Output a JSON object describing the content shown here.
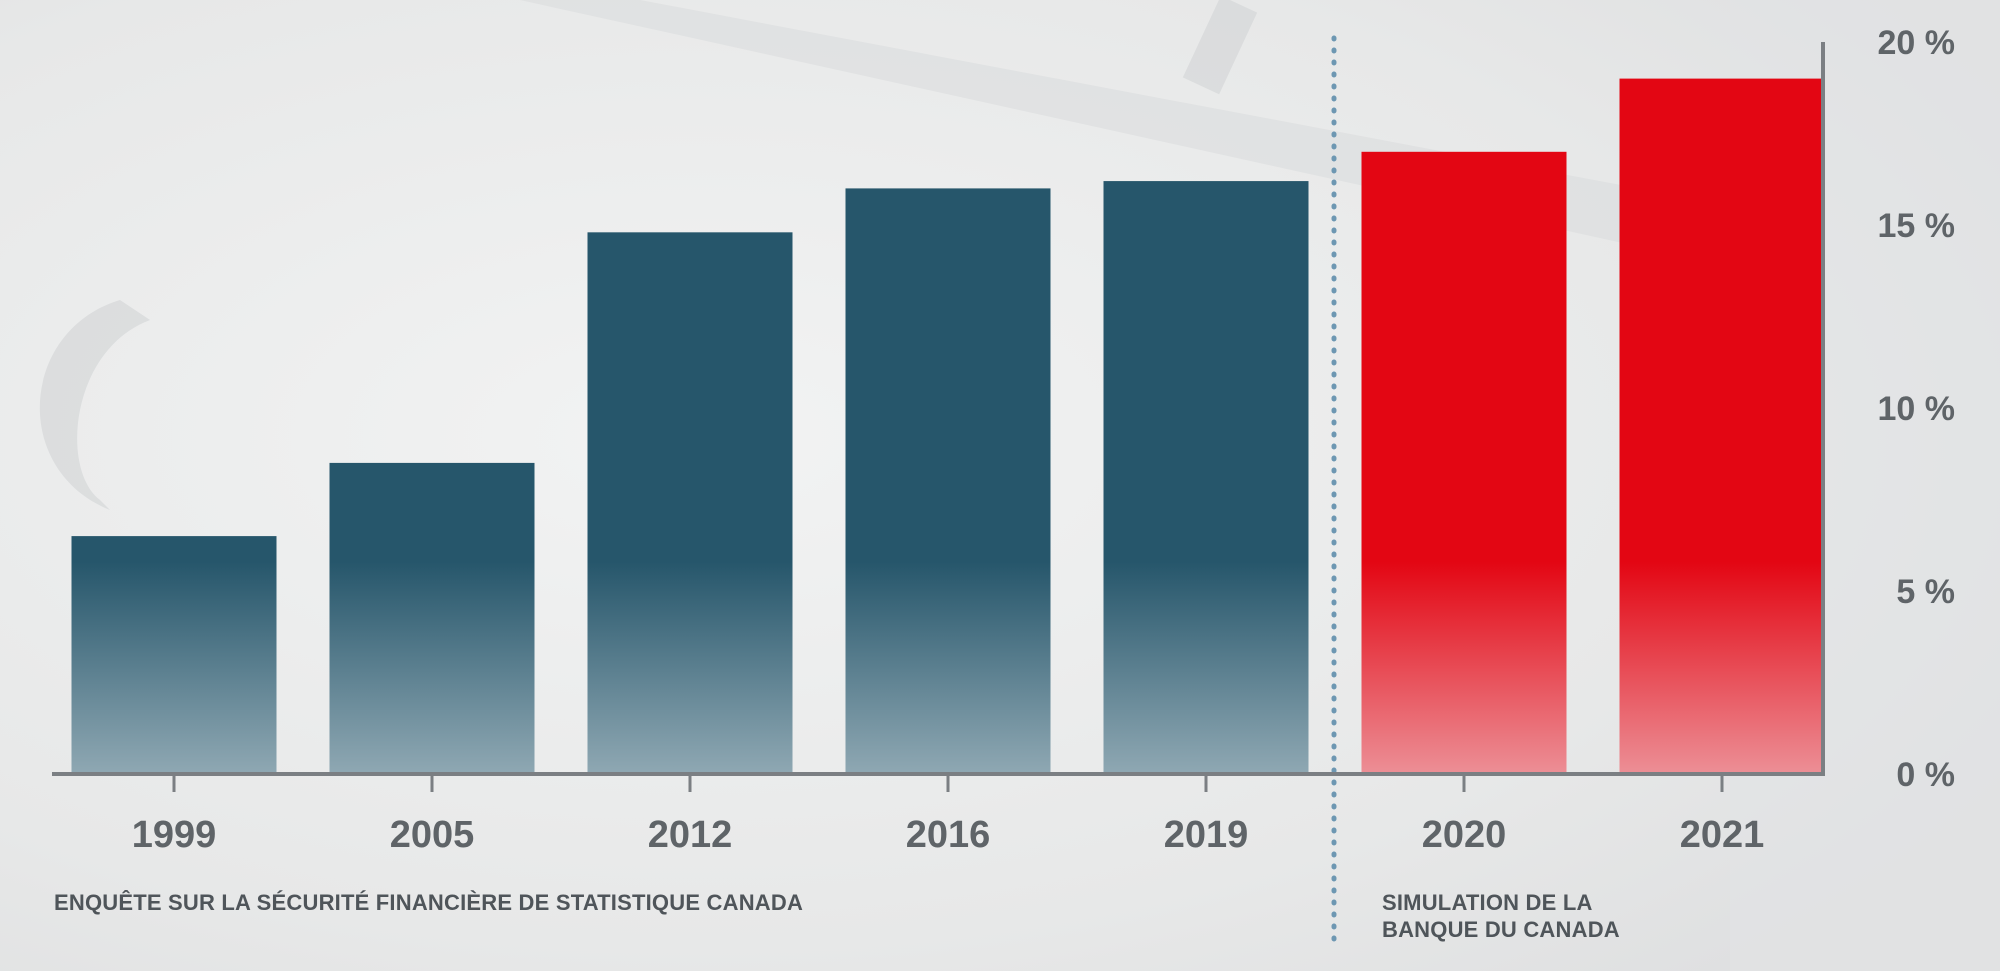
{
  "chart_data": {
    "type": "bar",
    "categories": [
      "1999",
      "2005",
      "2012",
      "2016",
      "2019",
      "2020",
      "2021"
    ],
    "values": [
      6.5,
      8.5,
      14.8,
      16.0,
      16.2,
      17.0,
      19.0
    ],
    "series_groups": [
      "survey",
      "survey",
      "survey",
      "survey",
      "survey",
      "simulation",
      "simulation"
    ],
    "ylim": [
      0,
      20
    ],
    "yticks": [
      0,
      5,
      10,
      15,
      20
    ],
    "ytick_labels": [
      "0 %",
      "5 %",
      "10 %",
      "15 %",
      "20 %"
    ],
    "title": "",
    "xlabel": "",
    "ylabel": "",
    "grid": false,
    "axis_position": "right"
  },
  "notes": {
    "survey": "ENQUÊTE SUR LA SÉCURITÉ FINANCIÈRE DE STATISTIQUE CANADA",
    "simulation_line1": "SIMULATION DE LA",
    "simulation_line2": "BANQUE DU CANADA"
  },
  "colors": {
    "survey_bar": "#26566b",
    "simulation_bar": "#e30613",
    "axis": "#7b7f83",
    "divider": "#6d97b2",
    "background": "#e9eaea"
  }
}
